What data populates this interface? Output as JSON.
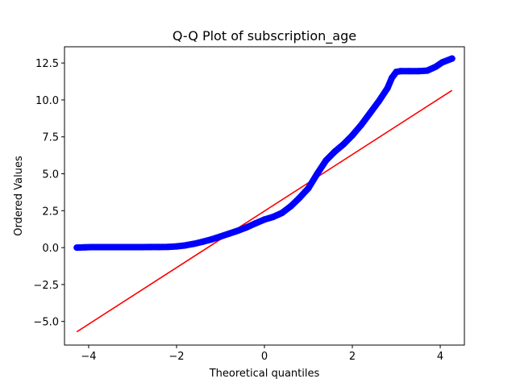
{
  "chart_data": {
    "type": "scatter",
    "title": "Q-Q Plot of subscription_age",
    "xlabel": "Theoretical quantiles",
    "ylabel": "Ordered Values",
    "xlim": [
      -4.55,
      4.55
    ],
    "ylim": [
      -6.6,
      13.6
    ],
    "xticks": [
      -4,
      -2,
      0,
      2,
      4
    ],
    "xtick_labels": [
      "−4",
      "−2",
      "0",
      "2",
      "4"
    ],
    "yticks": [
      -5.0,
      -2.5,
      0.0,
      2.5,
      5.0,
      7.5,
      10.0,
      12.5
    ],
    "ytick_labels": [
      "−5.0",
      "−2.5",
      "0.0",
      "2.5",
      "5.0",
      "7.5",
      "10.0",
      "12.5"
    ],
    "grid": false,
    "series": [
      {
        "kind": "points",
        "color": "#0000ff",
        "x": [
          -4.27,
          -4.08,
          -3.95,
          -3.8,
          -3.6,
          -3.4,
          -3.2,
          -3.0,
          -2.8,
          -2.6,
          -2.4,
          -2.2,
          -2.0,
          -1.8,
          -1.6,
          -1.4,
          -1.2,
          -1.0,
          -0.8,
          -0.6,
          -0.4,
          -0.2,
          0.0,
          0.2,
          0.4,
          0.6,
          0.8,
          1.0,
          1.2,
          1.4,
          1.6,
          1.8,
          2.0,
          2.2,
          2.4,
          2.6,
          2.8,
          2.9,
          3.0,
          3.1,
          3.3,
          3.5,
          3.7,
          3.9,
          4.05,
          4.27
        ],
        "y": [
          0.0,
          0.02,
          0.03,
          0.03,
          0.03,
          0.03,
          0.03,
          0.03,
          0.03,
          0.04,
          0.04,
          0.05,
          0.08,
          0.15,
          0.26,
          0.4,
          0.56,
          0.75,
          0.95,
          1.15,
          1.38,
          1.65,
          1.9,
          2.08,
          2.35,
          2.8,
          3.38,
          4.02,
          5.0,
          5.9,
          6.5,
          7.0,
          7.6,
          8.3,
          9.1,
          9.9,
          10.8,
          11.5,
          11.9,
          11.95,
          11.95,
          11.95,
          11.98,
          12.25,
          12.55,
          12.8
        ]
      },
      {
        "kind": "line",
        "color": "#ff0000",
        "x": [
          -4.27,
          4.27
        ],
        "y": [
          -5.7,
          10.65
        ]
      }
    ]
  }
}
